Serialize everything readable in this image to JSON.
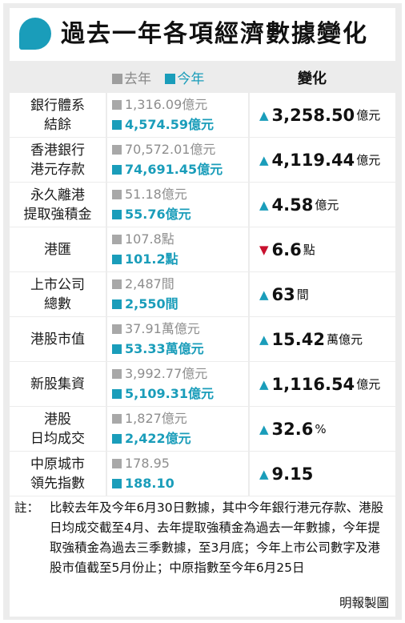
{
  "title": "過去一年各項經濟數據變化",
  "legend": {
    "prev_label": "去年",
    "cur_label": "今年",
    "change_header": "變化"
  },
  "rows": [
    {
      "label": "銀行體系\n結餘",
      "prev": "1,316.09億元",
      "cur": "4,574.59億元",
      "direction": "up",
      "change_value": "3,258.50",
      "change_unit": "億元"
    },
    {
      "label": "香港銀行\n港元存款",
      "prev": "70,572.01億元",
      "cur": "74,691.45億元",
      "direction": "up",
      "change_value": "4,119.44",
      "change_unit": "億元"
    },
    {
      "label": "永久離港\n提取強積金",
      "prev": "51.18億元",
      "cur": "55.76億元",
      "direction": "up",
      "change_value": "4.58",
      "change_unit": "億元"
    },
    {
      "label": "港匯",
      "prev": "107.8點",
      "cur": "101.2點",
      "direction": "down",
      "change_value": "6.6",
      "change_unit": "點"
    },
    {
      "label": "上市公司\n總數",
      "prev": "2,487間",
      "cur": "2,550間",
      "direction": "up",
      "change_value": "63",
      "change_unit": "間"
    },
    {
      "label": "港股市值",
      "prev": "37.91萬億元",
      "cur": "53.33萬億元",
      "direction": "up",
      "change_value": "15.42",
      "change_unit": "萬億元"
    },
    {
      "label": "新股集資",
      "prev": "3,992.77億元",
      "cur": "5,109.31億元",
      "direction": "up",
      "change_value": "1,116.54",
      "change_unit": "億元"
    },
    {
      "label": "港股\n日均成交",
      "prev": "1,827億元",
      "cur": "2,422億元",
      "direction": "up",
      "change_value": "32.6",
      "change_unit": "%"
    },
    {
      "label": "中原城市\n領先指數",
      "prev": "178.95",
      "cur": "188.10",
      "direction": "up",
      "change_value": "9.15",
      "change_unit": ""
    }
  ],
  "note_prefix": "註：",
  "note": "比較去年及今年6月30日數據，其中今年銀行港元存款、港股日均成交截至4月、去年提取強積金為過去一年數據，今年提取強積金為過去三季數據，至3月底；今年上市公司數字及港股市值截至5月份止；中原指數至今年6月25日",
  "credit": "明報製圖",
  "colors": {
    "accent": "#1a9dba",
    "previous": "#9e9e9e",
    "down": "#c8102e",
    "panel": "#ececec"
  },
  "icons": {
    "up": "triangle-up-icon",
    "down": "triangle-down-icon",
    "title": "speech-bubble-icon"
  }
}
